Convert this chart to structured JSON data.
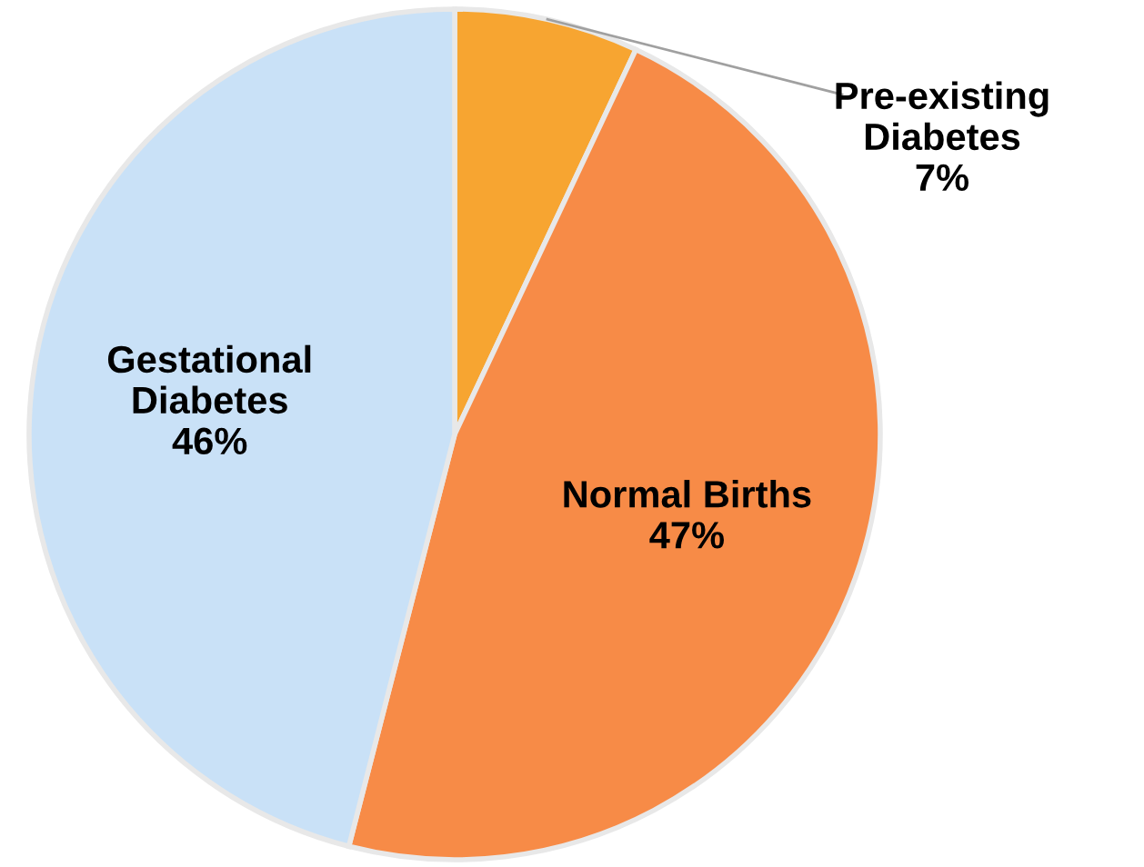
{
  "chart_data": {
    "type": "pie",
    "categories": [
      "Pre-existing\nDiabetes",
      "Normal Births",
      "Gestational\nDiabetes"
    ],
    "values": [
      7,
      47,
      46
    ],
    "value_labels": [
      "7%",
      "47%",
      "46%"
    ],
    "colors": [
      "#f7a531",
      "#f78b47",
      "#c9e1f7"
    ]
  }
}
